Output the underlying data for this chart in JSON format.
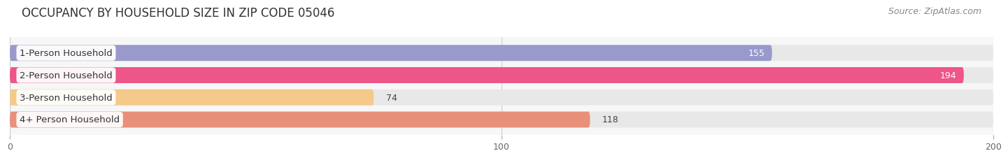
{
  "title": "OCCUPANCY BY HOUSEHOLD SIZE IN ZIP CODE 05046",
  "source": "Source: ZipAtlas.com",
  "categories": [
    "1-Person Household",
    "2-Person Household",
    "3-Person Household",
    "4+ Person Household"
  ],
  "values": [
    155,
    194,
    74,
    118
  ],
  "bar_colors": [
    "#9999cc",
    "#ee5588",
    "#f5c98a",
    "#e8907a"
  ],
  "bar_bg_color": "#e8e8e8",
  "xlim": [
    -3,
    210
  ],
  "data_xlim": [
    0,
    200
  ],
  "xticks": [
    0,
    100,
    200
  ],
  "fig_bg_color": "#ffffff",
  "plot_bg_color": "#f7f7f7",
  "title_fontsize": 12,
  "source_fontsize": 9,
  "label_fontsize": 9.5,
  "value_fontsize": 9,
  "bar_height": 0.72,
  "bar_spacing": 1.0,
  "rounding_size": 0.35
}
